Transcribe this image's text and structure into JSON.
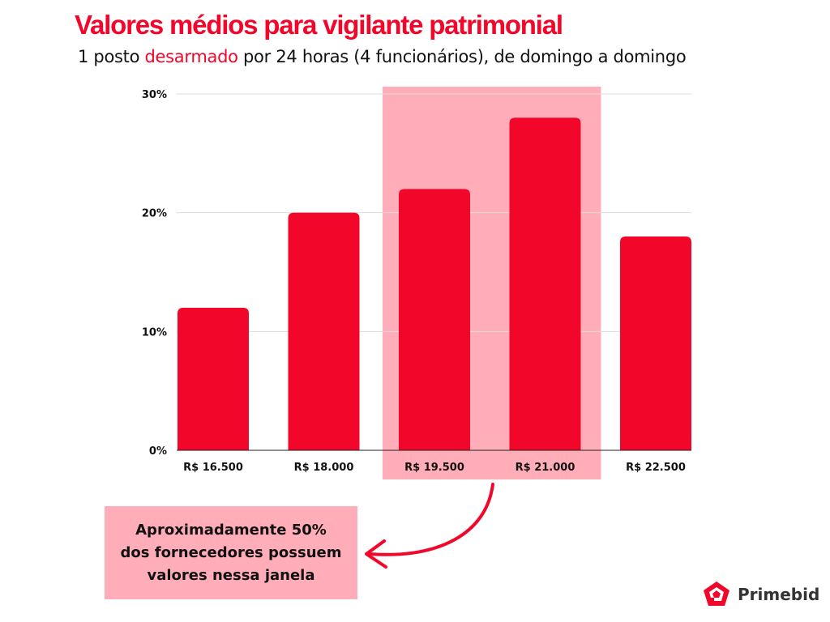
{
  "header": {
    "title": "Valores médios para vigilante patrimonial",
    "subtitle_pre": "1 posto ",
    "subtitle_highlight": "desarmado",
    "subtitle_post": " por 24 horas (4 funcionários), de domingo a domingo"
  },
  "callout": {
    "lines": [
      "Aproximadamente 50%",
      "dos fornecedores possuem",
      "valores nessa janela"
    ]
  },
  "logo": {
    "name": "Primebid"
  },
  "colors": {
    "bar": "#f2062a",
    "highlight": "#ffadb9",
    "grid": "#dddddd"
  },
  "chart_data": {
    "type": "bar",
    "title": "Valores médios para vigilante patrimonial",
    "categories": [
      "R$ 16.500",
      "R$ 18.000",
      "R$ 19.500",
      "R$ 21.000",
      "R$ 22.500"
    ],
    "values": [
      12,
      20,
      22,
      28,
      18
    ],
    "yticks": [
      "0%",
      "10%",
      "20%",
      "30%"
    ],
    "ytick_values": [
      0,
      10,
      20,
      30
    ],
    "ylim": [
      0,
      30
    ],
    "grid": true,
    "highlight_categories": [
      "R$ 19.500",
      "R$ 21.000"
    ],
    "xlabel": "",
    "ylabel": ""
  }
}
